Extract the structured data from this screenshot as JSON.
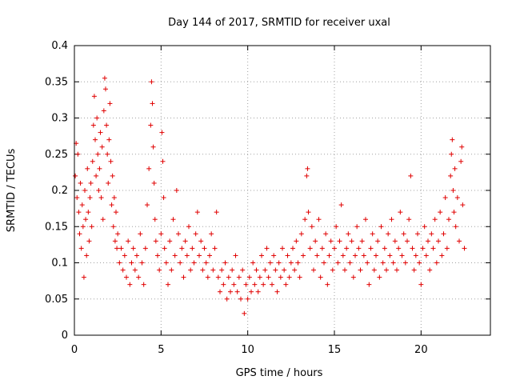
{
  "chart_data": {
    "type": "scatter",
    "title": "Day 144 of 2017, SRMTID for receiver uxal",
    "xlabel": "GPS time / hours",
    "ylabel": "SRMTID / TECUs",
    "xlim": [
      0,
      24
    ],
    "ylim": [
      0,
      0.4
    ],
    "xticks": [
      0,
      5,
      10,
      15,
      20
    ],
    "yticks": [
      0,
      0.05,
      0.1,
      0.15,
      0.2,
      0.25,
      0.3,
      0.35,
      0.4
    ],
    "xtick_labels": [
      "0",
      "5",
      "10",
      "15",
      "20"
    ],
    "ytick_labels": [
      "0",
      "0.05",
      "0.1",
      "0.15",
      "0.2",
      "0.25",
      "0.3",
      "0.35",
      "0.4"
    ],
    "grid": true,
    "legend": "none",
    "marker": "plus",
    "color": "#e00000",
    "series": [
      {
        "name": "SRMTID",
        "points": [
          [
            0.05,
            0.22
          ],
          [
            0.1,
            0.265
          ],
          [
            0.15,
            0.19
          ],
          [
            0.2,
            0.25
          ],
          [
            0.25,
            0.17
          ],
          [
            0.3,
            0.14
          ],
          [
            0.35,
            0.21
          ],
          [
            0.4,
            0.12
          ],
          [
            0.45,
            0.18
          ],
          [
            0.5,
            0.15
          ],
          [
            0.55,
            0.08
          ],
          [
            0.6,
            0.2
          ],
          [
            0.65,
            0.16
          ],
          [
            0.7,
            0.11
          ],
          [
            0.75,
            0.23
          ],
          [
            0.8,
            0.17
          ],
          [
            0.85,
            0.13
          ],
          [
            0.9,
            0.19
          ],
          [
            0.95,
            0.21
          ],
          [
            1.0,
            0.15
          ],
          [
            1.05,
            0.24
          ],
          [
            1.1,
            0.29
          ],
          [
            1.15,
            0.33
          ],
          [
            1.2,
            0.27
          ],
          [
            1.25,
            0.22
          ],
          [
            1.3,
            0.3
          ],
          [
            1.35,
            0.25
          ],
          [
            1.4,
            0.2
          ],
          [
            1.45,
            0.23
          ],
          [
            1.5,
            0.28
          ],
          [
            1.55,
            0.19
          ],
          [
            1.6,
            0.26
          ],
          [
            1.65,
            0.16
          ],
          [
            1.7,
            0.31
          ],
          [
            1.75,
            0.355
          ],
          [
            1.8,
            0.34
          ],
          [
            1.85,
            0.29
          ],
          [
            1.9,
            0.25
          ],
          [
            1.95,
            0.21
          ],
          [
            2.0,
            0.27
          ],
          [
            2.05,
            0.32
          ],
          [
            2.1,
            0.24
          ],
          [
            2.15,
            0.18
          ],
          [
            2.2,
            0.22
          ],
          [
            2.25,
            0.15
          ],
          [
            2.3,
            0.19
          ],
          [
            2.35,
            0.13
          ],
          [
            2.4,
            0.17
          ],
          [
            2.45,
            0.12
          ],
          [
            2.5,
            0.14
          ],
          [
            2.6,
            0.1
          ],
          [
            2.7,
            0.12
          ],
          [
            2.8,
            0.09
          ],
          [
            2.9,
            0.11
          ],
          [
            3.0,
            0.08
          ],
          [
            3.1,
            0.13
          ],
          [
            3.2,
            0.07
          ],
          [
            3.3,
            0.1
          ],
          [
            3.4,
            0.12
          ],
          [
            3.5,
            0.09
          ],
          [
            3.6,
            0.11
          ],
          [
            3.7,
            0.08
          ],
          [
            3.8,
            0.14
          ],
          [
            3.9,
            0.1
          ],
          [
            4.0,
            0.07
          ],
          [
            4.1,
            0.12
          ],
          [
            4.2,
            0.18
          ],
          [
            4.3,
            0.23
          ],
          [
            4.4,
            0.29
          ],
          [
            4.45,
            0.35
          ],
          [
            4.5,
            0.32
          ],
          [
            4.55,
            0.26
          ],
          [
            4.6,
            0.21
          ],
          [
            4.65,
            0.16
          ],
          [
            4.7,
            0.13
          ],
          [
            4.8,
            0.11
          ],
          [
            4.9,
            0.09
          ],
          [
            5.0,
            0.14
          ],
          [
            5.05,
            0.28
          ],
          [
            5.1,
            0.24
          ],
          [
            5.15,
            0.19
          ],
          [
            5.2,
            0.12
          ],
          [
            5.3,
            0.1
          ],
          [
            5.4,
            0.07
          ],
          [
            5.5,
            0.13
          ],
          [
            5.6,
            0.09
          ],
          [
            5.7,
            0.16
          ],
          [
            5.8,
            0.11
          ],
          [
            5.9,
            0.2
          ],
          [
            6.0,
            0.14
          ],
          [
            6.1,
            0.1
          ],
          [
            6.2,
            0.12
          ],
          [
            6.3,
            0.08
          ],
          [
            6.4,
            0.13
          ],
          [
            6.5,
            0.11
          ],
          [
            6.6,
            0.15
          ],
          [
            6.7,
            0.09
          ],
          [
            6.8,
            0.12
          ],
          [
            6.9,
            0.1
          ],
          [
            7.0,
            0.14
          ],
          [
            7.1,
            0.17
          ],
          [
            7.2,
            0.11
          ],
          [
            7.3,
            0.13
          ],
          [
            7.4,
            0.09
          ],
          [
            7.5,
            0.12
          ],
          [
            7.6,
            0.1
          ],
          [
            7.7,
            0.08
          ],
          [
            7.8,
            0.11
          ],
          [
            7.9,
            0.14
          ],
          [
            8.0,
            0.09
          ],
          [
            8.1,
            0.12
          ],
          [
            8.2,
            0.17
          ],
          [
            8.3,
            0.08
          ],
          [
            8.4,
            0.06
          ],
          [
            8.5,
            0.09
          ],
          [
            8.6,
            0.07
          ],
          [
            8.7,
            0.1
          ],
          [
            8.8,
            0.05
          ],
          [
            8.9,
            0.08
          ],
          [
            9.0,
            0.06
          ],
          [
            9.1,
            0.09
          ],
          [
            9.2,
            0.07
          ],
          [
            9.3,
            0.11
          ],
          [
            9.4,
            0.06
          ],
          [
            9.5,
            0.08
          ],
          [
            9.6,
            0.05
          ],
          [
            9.7,
            0.09
          ],
          [
            9.8,
            0.03
          ],
          [
            9.9,
            0.07
          ],
          [
            10.0,
            0.05
          ],
          [
            10.1,
            0.08
          ],
          [
            10.2,
            0.06
          ],
          [
            10.3,
            0.1
          ],
          [
            10.4,
            0.07
          ],
          [
            10.5,
            0.09
          ],
          [
            10.6,
            0.06
          ],
          [
            10.7,
            0.08
          ],
          [
            10.8,
            0.11
          ],
          [
            10.9,
            0.07
          ],
          [
            11.0,
            0.09
          ],
          [
            11.1,
            0.12
          ],
          [
            11.2,
            0.08
          ],
          [
            11.3,
            0.1
          ],
          [
            11.4,
            0.07
          ],
          [
            11.5,
            0.11
          ],
          [
            11.6,
            0.09
          ],
          [
            11.7,
            0.06
          ],
          [
            11.8,
            0.1
          ],
          [
            11.9,
            0.08
          ],
          [
            12.0,
            0.12
          ],
          [
            12.1,
            0.09
          ],
          [
            12.2,
            0.07
          ],
          [
            12.3,
            0.11
          ],
          [
            12.4,
            0.08
          ],
          [
            12.5,
            0.1
          ],
          [
            12.6,
            0.12
          ],
          [
            12.7,
            0.09
          ],
          [
            12.8,
            0.13
          ],
          [
            12.9,
            0.1
          ],
          [
            13.0,
            0.08
          ],
          [
            13.1,
            0.14
          ],
          [
            13.2,
            0.11
          ],
          [
            13.3,
            0.16
          ],
          [
            13.4,
            0.22
          ],
          [
            13.45,
            0.23
          ],
          [
            13.5,
            0.17
          ],
          [
            13.6,
            0.12
          ],
          [
            13.7,
            0.15
          ],
          [
            13.8,
            0.09
          ],
          [
            13.9,
            0.13
          ],
          [
            14.0,
            0.11
          ],
          [
            14.1,
            0.16
          ],
          [
            14.2,
            0.08
          ],
          [
            14.3,
            0.12
          ],
          [
            14.4,
            0.1
          ],
          [
            14.5,
            0.14
          ],
          [
            14.6,
            0.07
          ],
          [
            14.7,
            0.11
          ],
          [
            14.8,
            0.13
          ],
          [
            14.9,
            0.09
          ],
          [
            15.0,
            0.12
          ],
          [
            15.1,
            0.15
          ],
          [
            15.2,
            0.1
          ],
          [
            15.3,
            0.13
          ],
          [
            15.4,
            0.18
          ],
          [
            15.5,
            0.11
          ],
          [
            15.6,
            0.09
          ],
          [
            15.7,
            0.12
          ],
          [
            15.8,
            0.14
          ],
          [
            15.9,
            0.1
          ],
          [
            16.0,
            0.13
          ],
          [
            16.1,
            0.08
          ],
          [
            16.2,
            0.11
          ],
          [
            16.3,
            0.15
          ],
          [
            16.4,
            0.12
          ],
          [
            16.5,
            0.09
          ],
          [
            16.6,
            0.13
          ],
          [
            16.7,
            0.11
          ],
          [
            16.8,
            0.16
          ],
          [
            16.9,
            0.1
          ],
          [
            17.0,
            0.07
          ],
          [
            17.1,
            0.12
          ],
          [
            17.2,
            0.14
          ],
          [
            17.3,
            0.09
          ],
          [
            17.4,
            0.11
          ],
          [
            17.5,
            0.13
          ],
          [
            17.6,
            0.08
          ],
          [
            17.7,
            0.15
          ],
          [
            17.8,
            0.1
          ],
          [
            17.9,
            0.12
          ],
          [
            18.0,
            0.09
          ],
          [
            18.1,
            0.14
          ],
          [
            18.2,
            0.11
          ],
          [
            18.3,
            0.16
          ],
          [
            18.4,
            0.1
          ],
          [
            18.5,
            0.13
          ],
          [
            18.6,
            0.09
          ],
          [
            18.7,
            0.12
          ],
          [
            18.8,
            0.17
          ],
          [
            18.9,
            0.11
          ],
          [
            19.0,
            0.14
          ],
          [
            19.1,
            0.1
          ],
          [
            19.2,
            0.13
          ],
          [
            19.3,
            0.16
          ],
          [
            19.4,
            0.22
          ],
          [
            19.5,
            0.12
          ],
          [
            19.6,
            0.09
          ],
          [
            19.7,
            0.11
          ],
          [
            19.8,
            0.14
          ],
          [
            19.9,
            0.1
          ],
          [
            20.0,
            0.07
          ],
          [
            20.1,
            0.12
          ],
          [
            20.2,
            0.15
          ],
          [
            20.3,
            0.11
          ],
          [
            20.4,
            0.13
          ],
          [
            20.5,
            0.09
          ],
          [
            20.6,
            0.14
          ],
          [
            20.7,
            0.12
          ],
          [
            20.8,
            0.16
          ],
          [
            20.9,
            0.1
          ],
          [
            21.0,
            0.13
          ],
          [
            21.1,
            0.17
          ],
          [
            21.2,
            0.11
          ],
          [
            21.3,
            0.14
          ],
          [
            21.4,
            0.19
          ],
          [
            21.5,
            0.12
          ],
          [
            21.6,
            0.16
          ],
          [
            21.7,
            0.22
          ],
          [
            21.75,
            0.25
          ],
          [
            21.8,
            0.27
          ],
          [
            21.85,
            0.2
          ],
          [
            21.9,
            0.17
          ],
          [
            21.95,
            0.23
          ],
          [
            22.0,
            0.15
          ],
          [
            22.1,
            0.19
          ],
          [
            22.2,
            0.13
          ],
          [
            22.3,
            0.24
          ],
          [
            22.35,
            0.26
          ],
          [
            22.4,
            0.18
          ],
          [
            22.5,
            0.12
          ]
        ]
      }
    ]
  }
}
